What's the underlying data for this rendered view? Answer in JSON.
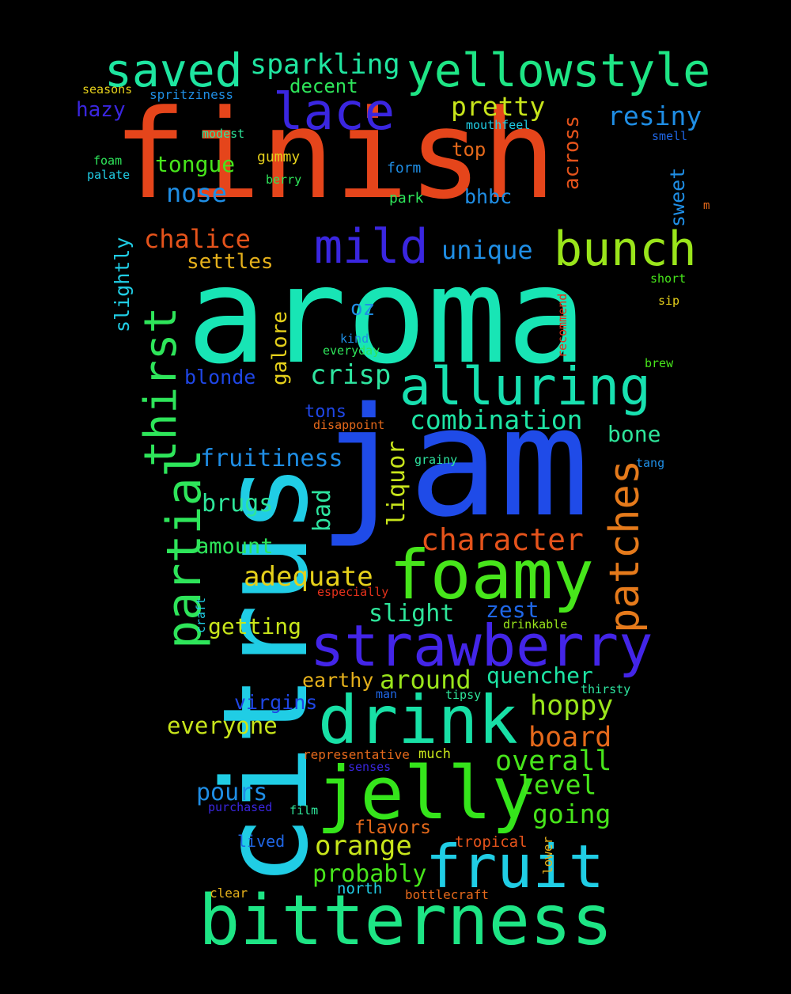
{
  "background": "#000000",
  "words": [
    {
      "text": "finish",
      "color": "#e5451b"
    },
    {
      "text": "aroma",
      "color": "#18e5b5"
    },
    {
      "text": "jam",
      "color": "#1f4be8"
    },
    {
      "text": "citrus",
      "color": "#20cde5"
    },
    {
      "text": "bitterness",
      "color": "#1ee585"
    },
    {
      "text": "jelly",
      "color": "#35e51b"
    },
    {
      "text": "drink",
      "color": "#18e0a6"
    },
    {
      "text": "strawberry",
      "color": "#4325e8"
    },
    {
      "text": "foamy",
      "color": "#47e51b"
    },
    {
      "text": "fruit",
      "color": "#20cde5"
    },
    {
      "text": "alluring",
      "color": "#18e0b0"
    },
    {
      "text": "yellowstyle",
      "color": "#1ee585"
    },
    {
      "text": "bunch",
      "color": "#9ae51b"
    },
    {
      "text": "saved",
      "color": "#1ee5a0"
    },
    {
      "text": "lace",
      "color": "#3a26e0"
    },
    {
      "text": "mild",
      "color": "#3a26e0"
    },
    {
      "text": "partial",
      "color": "#2ee55a"
    },
    {
      "text": "thirst",
      "color": "#2ee55a"
    },
    {
      "text": "patches",
      "color": "#e57a1b"
    },
    {
      "text": "sparkling",
      "color": "#20e5a0"
    },
    {
      "text": "character",
      "color": "#e5531b"
    },
    {
      "text": "combination",
      "color": "#1ee5a5"
    },
    {
      "text": "pretty",
      "color": "#c8e51b"
    },
    {
      "text": "resiny",
      "color": "#1f8ee5"
    },
    {
      "text": "chalice",
      "color": "#e5531b"
    },
    {
      "text": "unique",
      "color": "#1f8ee5"
    },
    {
      "text": "crisp",
      "color": "#2ee5a0"
    },
    {
      "text": "adequate",
      "color": "#e5d01b"
    },
    {
      "text": "hoppy",
      "color": "#9ae51b"
    },
    {
      "text": "overall",
      "color": "#47e51b"
    },
    {
      "text": "board",
      "color": "#e5691b"
    },
    {
      "text": "level",
      "color": "#47e51b"
    },
    {
      "text": "going",
      "color": "#47e51b"
    },
    {
      "text": "orange",
      "color": "#c8e51b"
    },
    {
      "text": "probably",
      "color": "#47e51b"
    },
    {
      "text": "pours",
      "color": "#1f8ee5"
    },
    {
      "text": "around",
      "color": "#9ae51b"
    },
    {
      "text": "quencher",
      "color": "#1ee5a5"
    },
    {
      "text": "everyone",
      "color": "#c8e51b"
    },
    {
      "text": "slight",
      "color": "#2ee59a"
    },
    {
      "text": "zest",
      "color": "#1f66e5"
    },
    {
      "text": "getting",
      "color": "#c8e51b"
    },
    {
      "text": "earthy",
      "color": "#e5b01b"
    },
    {
      "text": "virgins",
      "color": "#1f46e5"
    },
    {
      "text": "amount",
      "color": "#2ee55a"
    },
    {
      "text": "brugs",
      "color": "#2ee59a"
    },
    {
      "text": "fruitiness",
      "color": "#1f8ee5"
    },
    {
      "text": "bone",
      "color": "#2ee59a"
    },
    {
      "text": "liquor",
      "color": "#c8e51b"
    },
    {
      "text": "bad",
      "color": "#2ee5a0"
    },
    {
      "text": "blonde",
      "color": "#1f46e5"
    },
    {
      "text": "galore",
      "color": "#e5d01b"
    },
    {
      "text": "oz",
      "color": "#1f8ee5"
    },
    {
      "text": "tons",
      "color": "#1f46e5"
    },
    {
      "text": "settles",
      "color": "#e5b01b"
    },
    {
      "text": "slightly",
      "color": "#20cde5"
    },
    {
      "text": "nose",
      "color": "#1f8ee5"
    },
    {
      "text": "tongue",
      "color": "#47e51b"
    },
    {
      "text": "hazy",
      "color": "#3a26e0"
    },
    {
      "text": "decent",
      "color": "#2ee55a"
    },
    {
      "text": "top",
      "color": "#e5691b"
    },
    {
      "text": "across",
      "color": "#e5531b"
    },
    {
      "text": "bhbc",
      "color": "#1f8ee5"
    },
    {
      "text": "sweet",
      "color": "#1f8ee5"
    },
    {
      "text": "gummy",
      "color": "#e5d01b"
    },
    {
      "text": "form",
      "color": "#1f8ee5"
    },
    {
      "text": "park",
      "color": "#2ee55a"
    },
    {
      "text": "flavors",
      "color": "#e5691b"
    },
    {
      "text": "lived",
      "color": "#1f66e5"
    },
    {
      "text": "tropical",
      "color": "#e5531b"
    },
    {
      "text": "north",
      "color": "#20cde5"
    },
    {
      "text": "clear",
      "color": "#e5b01b"
    },
    {
      "text": "bottlecraft",
      "color": "#e5691b"
    },
    {
      "text": "lower",
      "color": "#e5b01b"
    },
    {
      "text": "representative",
      "color": "#e5691b"
    },
    {
      "text": "much",
      "color": "#c8e51b"
    },
    {
      "text": "senses",
      "color": "#3a26e0"
    },
    {
      "text": "purchased",
      "color": "#3a26e0"
    },
    {
      "text": "film",
      "color": "#2ee59a"
    },
    {
      "text": "man",
      "color": "#1f66e5"
    },
    {
      "text": "tipsy",
      "color": "#2ee59a"
    },
    {
      "text": "thirsty",
      "color": "#2ee5a0"
    },
    {
      "text": "drinkable",
      "color": "#9ae51b"
    },
    {
      "text": "especially",
      "color": "#e5311b"
    },
    {
      "text": "craft",
      "color": "#20cde5"
    },
    {
      "text": "disappoint",
      "color": "#e5691b"
    },
    {
      "text": "grainy",
      "color": "#2ee5a0"
    },
    {
      "text": "tang",
      "color": "#1f8ee5"
    },
    {
      "text": "brew",
      "color": "#47e51b"
    },
    {
      "text": "everyday",
      "color": "#2ee55a"
    },
    {
      "text": "kind",
      "color": "#1f8ee5"
    },
    {
      "text": "recommend",
      "color": "#e5311b"
    },
    {
      "text": "sip",
      "color": "#e5d01b"
    },
    {
      "text": "short",
      "color": "#47e51b"
    },
    {
      "text": "m",
      "color": "#e5691b"
    },
    {
      "text": "smell",
      "color": "#1f66e5"
    },
    {
      "text": "berry",
      "color": "#2ee55a"
    },
    {
      "text": "mouthfeel",
      "color": "#20cde5"
    },
    {
      "text": "modest",
      "color": "#2ee59a"
    },
    {
      "text": "foam",
      "color": "#2ee55a"
    },
    {
      "text": "palate",
      "color": "#20cde5"
    },
    {
      "text": "seasons",
      "color": "#e5d01b"
    },
    {
      "text": "spritziness",
      "color": "#1f8ee5"
    }
  ]
}
